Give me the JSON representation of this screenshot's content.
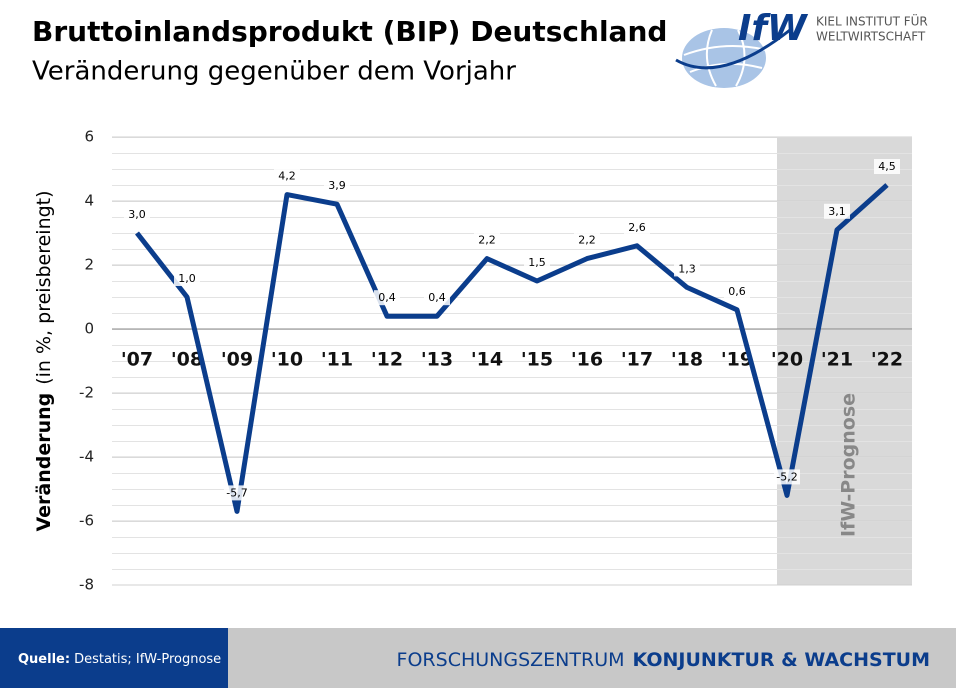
{
  "chart_data": {
    "type": "line",
    "title": "Bruttoinlandsprodukt (BIP)  Deutschland",
    "subtitle": "Veränderung gegenüber dem Vorjahr",
    "y_label": "Veränderung",
    "y_label_unit": "(in %, preisbereingt)",
    "annotation": "IfW-Prognose",
    "categories": [
      "'07",
      "'08",
      "'09",
      "'10",
      "'11",
      "'12",
      "'13",
      "'14",
      "'15",
      "'16",
      "'17",
      "'18",
      "'19",
      "'20",
      "'21",
      "'22"
    ],
    "values": [
      3.0,
      1.0,
      -5.7,
      4.2,
      3.9,
      0.4,
      0.4,
      2.2,
      1.5,
      2.2,
      2.6,
      1.3,
      0.6,
      -5.2,
      3.1,
      4.5
    ],
    "value_labels": [
      "3,0",
      "1,0",
      "-5,7",
      "4,2",
      "3,9",
      "0,4",
      "0,4",
      "2,2",
      "1,5",
      "2,2",
      "2,6",
      "1,3",
      "0,6",
      "-5,2",
      "3,1",
      "4,5"
    ],
    "color": "#0b3d8c",
    "ylim": [
      -8,
      6
    ],
    "yticks": [
      -8,
      -6,
      -4,
      -2,
      0,
      2,
      4,
      6
    ],
    "grid": true
  },
  "logo": {
    "mark": "IfW",
    "line1": "KIEL INSTITUT FÜR",
    "line2": "WELTWIRTSCHAFT"
  },
  "footer": {
    "source_label": "Quelle:",
    "source_text": "Destatis; IfW-Prognose",
    "center_light": "FORSCHUNGSZENTRUM",
    "center_bold": "KONJUNKTUR & WACHSTUM"
  }
}
